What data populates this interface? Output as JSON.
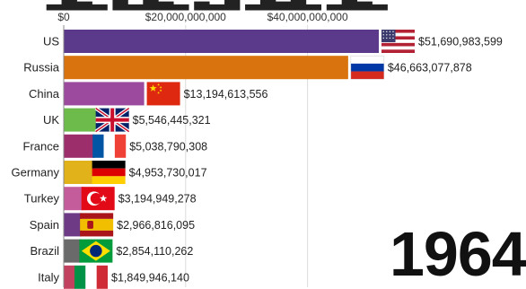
{
  "chart_data": {
    "type": "bar",
    "orientation": "horizontal",
    "year": "1964",
    "xlim": [
      0,
      51690983599
    ],
    "x_ticks": [
      {
        "value": 0,
        "label": "$0"
      },
      {
        "value": 20000000000,
        "label": "$20,000,000,000"
      },
      {
        "value": 40000000000,
        "label": "$40,000,000,000"
      }
    ],
    "bars": [
      {
        "category": "US",
        "value": 51690983599,
        "label": "$51,690,983,599",
        "color": "#5b3a8c",
        "flag": "us-flag"
      },
      {
        "category": "Russia",
        "value": 46663077878,
        "label": "$46,663,077,878",
        "color": "#d9730d",
        "flag": "russia-flag"
      },
      {
        "category": "China",
        "value": 13194613556,
        "label": "$13,194,613,556",
        "color": "#9b4a9e",
        "flag": "china-flag"
      },
      {
        "category": "UK",
        "value": 5546445321,
        "label": "$5,546,445,321",
        "color": "#6dbb4b",
        "flag": "uk-flag"
      },
      {
        "category": "France",
        "value": 5038790308,
        "label": "$5,038,790,308",
        "color": "#9c2e6b",
        "flag": "france-flag"
      },
      {
        "category": "Germany",
        "value": 4953730017,
        "label": "$4,953,730,017",
        "color": "#e2b21a",
        "flag": "germany-flag"
      },
      {
        "category": "Turkey",
        "value": 3194949278,
        "label": "$3,194,949,278",
        "color": "#c45b9b",
        "flag": "turkey-flag"
      },
      {
        "category": "Spain",
        "value": 2966816095,
        "label": "$2,966,816,095",
        "color": "#6e3a86",
        "flag": "spain-flag"
      },
      {
        "category": "Brazil",
        "value": 2854110262,
        "label": "$2,854,110,262",
        "color": "#6a6a6a",
        "flag": "brazil-flag"
      },
      {
        "category": "Italy",
        "value": 1849946140,
        "label": "$1,849,946,140",
        "color": "#c2415f",
        "flag": "italy-flag"
      }
    ]
  }
}
